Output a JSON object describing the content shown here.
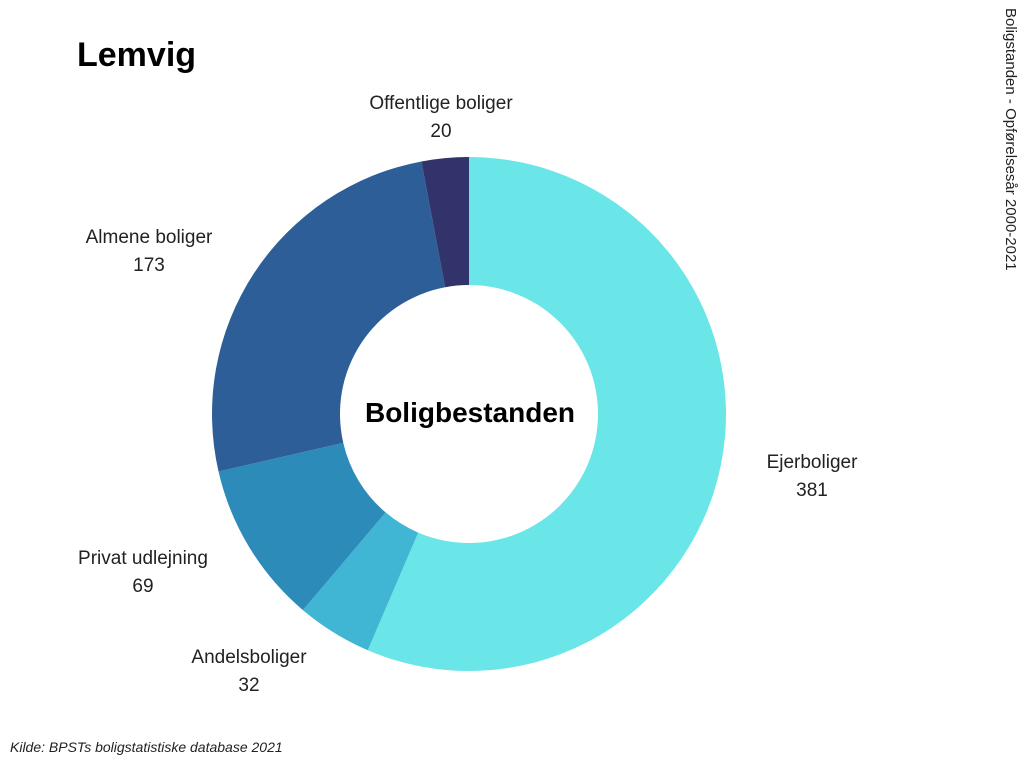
{
  "header": {
    "title": "Lemvig",
    "side_note": "Boligstanden - Opførelsesår 2000-2021"
  },
  "footer": {
    "source": "Kilde: BPSTs boligstatistiske database 2021"
  },
  "chart_data": {
    "type": "pie",
    "style": "donut",
    "center_label": "Boligbestanden",
    "slices": [
      {
        "name": "Ejerboliger",
        "value": 381,
        "color": "#6ae5e8"
      },
      {
        "name": "Andelsboliger",
        "value": 32,
        "color": "#41b6d4"
      },
      {
        "name": "Privat udlejning",
        "value": 69,
        "color": "#2d8bba"
      },
      {
        "name": "Almene boliger",
        "value": 173,
        "color": "#2e5e98"
      },
      {
        "name": "Offentlige boliger",
        "value": 20,
        "color": "#31336a"
      }
    ]
  }
}
